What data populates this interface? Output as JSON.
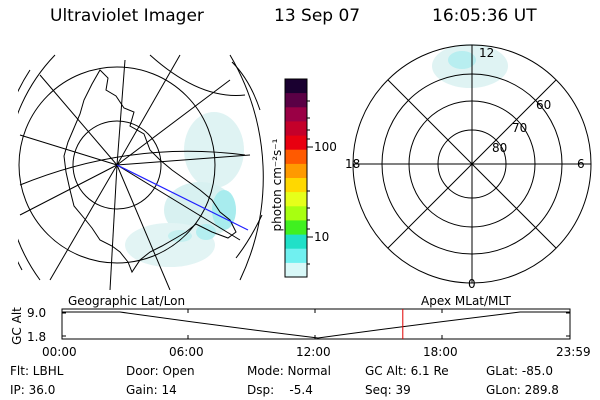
{
  "header": {
    "instrument": "Ultraviolet Imager",
    "date": "13 Sep 07",
    "time": "16:05:36 UT"
  },
  "colorbar": {
    "unit_label": "photon cm⁻²s⁻¹",
    "ticks": [
      "100",
      "10"
    ],
    "colors": [
      "#1a0030",
      "#5a0045",
      "#9a0045",
      "#c4002a",
      "#e80010",
      "#ff5a00",
      "#ff9a00",
      "#ffd800",
      "#e6ff1a",
      "#a8ff10",
      "#40f020",
      "#20e0c8",
      "#70f0f0",
      "#d8f8f8"
    ]
  },
  "polar_plot": {
    "mlt_labels": {
      "top": "12",
      "left": "18",
      "right": "6",
      "bottom": "0"
    },
    "lat_labels": [
      "60",
      "70",
      "80"
    ]
  },
  "timeline": {
    "left_title": "Geographic Lat/Lon",
    "right_title": "Apex MLat/MLT",
    "ylabel": "GC Alt",
    "y_ticks": [
      "9.0",
      "1.8"
    ],
    "x_ticks": [
      "00:00",
      "06:00",
      "12:00",
      "18:00",
      "23:59"
    ],
    "marker_time_hours": 16.09
  },
  "info": {
    "flt": "Flt: LBHL",
    "ip": "IP: 36.0",
    "door": "Door: Open",
    "gain": "Gain: 14",
    "mode": "Mode: Normal",
    "dsp": "Dsp:    -5.4",
    "gcalt": "GC Alt: 6.1 Re",
    "seq": "Seq: 39",
    "glat": "GLat: -85.0",
    "glon": "GLon: 289.8"
  }
}
